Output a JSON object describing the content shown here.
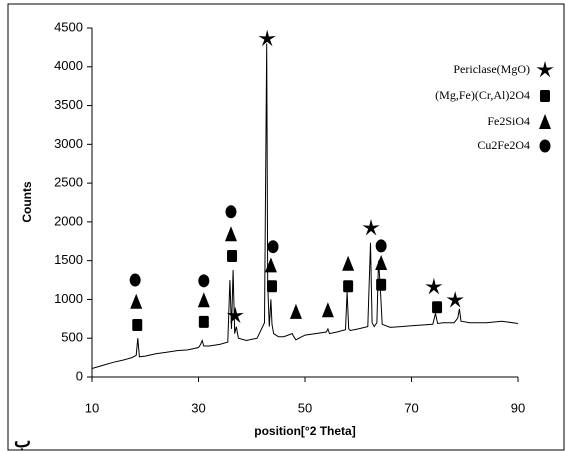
{
  "chart_data": {
    "type": "line",
    "xlabel": "position[°2 Theta]",
    "ylabel": "Counts",
    "annotation": "ب",
    "xlim": [
      10,
      90
    ],
    "xticks": [
      10,
      30,
      50,
      70,
      90
    ],
    "ylim": [
      0,
      4500
    ],
    "yticks": [
      0,
      500,
      1000,
      1500,
      2000,
      2500,
      3000,
      3500,
      4000,
      4500
    ],
    "legend": "upper right",
    "series": [
      {
        "color": "#000000",
        "x": [
          10,
          12,
          14,
          16,
          17.5,
          18.3,
          18.6,
          18.9,
          20,
          22,
          24,
          26,
          28,
          30,
          30.4,
          30.7,
          31.0,
          32,
          34,
          35.5,
          35.9,
          36.2,
          36.5,
          36.8,
          37.1,
          37.5,
          39,
          41,
          42.4,
          42.8,
          43.0,
          43.3,
          43.6,
          43.8,
          44.1,
          45,
          46,
          47.6,
          47.9,
          48.3,
          50,
          52,
          54,
          54.3,
          54.6,
          56,
          57.6,
          57.9,
          58.2,
          58.5,
          60,
          61.8,
          62.3,
          62.6,
          63.0,
          63.5,
          63.8,
          64.1,
          64.5,
          66,
          68,
          70,
          72,
          74,
          74.5,
          74.9,
          76,
          78,
          78.7,
          79.0,
          79.3,
          81,
          84,
          87,
          90
        ],
        "values": [
          110,
          150,
          190,
          220,
          250,
          280,
          500,
          260,
          270,
          300,
          320,
          340,
          350,
          380,
          420,
          470,
          400,
          400,
          420,
          450,
          1250,
          620,
          1380,
          560,
          650,
          500,
          470,
          500,
          700,
          4300,
          1200,
          650,
          1000,
          680,
          560,
          520,
          520,
          560,
          520,
          480,
          540,
          560,
          580,
          620,
          560,
          580,
          610,
          1100,
          620,
          600,
          620,
          650,
          1730,
          700,
          650,
          700,
          1500,
          1200,
          680,
          640,
          650,
          660,
          670,
          680,
          820,
          690,
          700,
          700,
          760,
          880,
          720,
          700,
          700,
          720,
          690
        ]
      },
      {
        "name": "Periclase(MgO)",
        "marker": "star",
        "color": "#000000",
        "x": [
          42.9,
          36.9,
          62.4,
          74.2,
          78.2
        ],
        "values": [
          4360,
          790,
          1920,
          1160,
          990
        ]
      },
      {
        "name": "(Mg,Fe)(Cr,Al)2O4",
        "marker": "square",
        "color": "#000000",
        "x": [
          18.5,
          31.0,
          36.3,
          43.8,
          58.1,
          64.3,
          74.8
        ],
        "values": [
          670,
          710,
          1560,
          1170,
          1170,
          1190,
          900
        ]
      },
      {
        "name": "Fe2SiO4",
        "marker": "triangle",
        "color": "#000000",
        "x": [
          18.3,
          31.0,
          36.1,
          43.6,
          48.3,
          54.3,
          58.1,
          64.3
        ],
        "values": [
          970,
          990,
          1840,
          1440,
          840,
          860,
          1460,
          1470
        ]
      },
      {
        "name": "Cu2Fe2O4",
        "marker": "circle",
        "color": "#000000",
        "x": [
          18.1,
          31.0,
          36.1,
          44.0,
          64.3
        ],
        "values": [
          1250,
          1240,
          2130,
          1680,
          1690
        ]
      }
    ]
  }
}
